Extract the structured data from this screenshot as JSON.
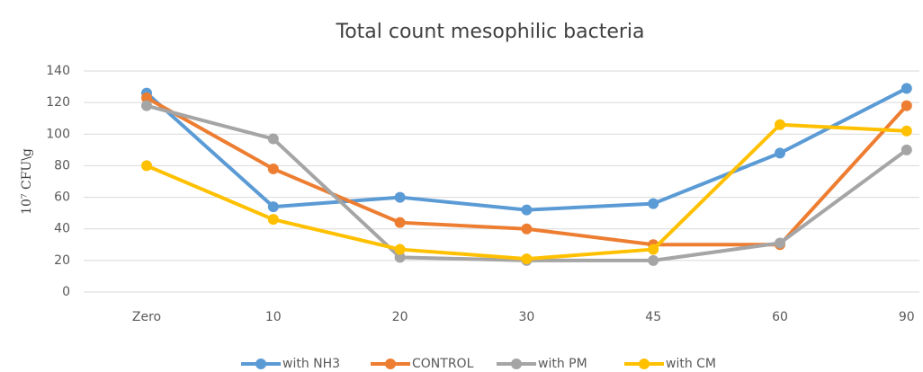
{
  "chart_data": {
    "type": "line",
    "title": "Total count mesophilic bacteria",
    "y_label": "10⁷ CFU\\g",
    "categories": [
      "Zero",
      "10",
      "20",
      "30",
      "45",
      "60",
      "90"
    ],
    "series": [
      {
        "name": "with NH3",
        "color": "#5b9bd5",
        "values": [
          126,
          54,
          60,
          52,
          56,
          88,
          129
        ]
      },
      {
        "name": "CONTROL",
        "color": "#ed7d31",
        "values": [
          123,
          78,
          44,
          40,
          30,
          30,
          118
        ]
      },
      {
        "name": "with PM",
        "color": "#a5a5a5",
        "values": [
          118,
          97,
          22,
          20,
          20,
          31,
          90
        ]
      },
      {
        "name": "with CM",
        "color": "#ffc000",
        "values": [
          80,
          46,
          27,
          21,
          27,
          106,
          102
        ]
      }
    ],
    "ylim": [
      0,
      140
    ],
    "yticks": [
      0,
      20,
      40,
      60,
      80,
      100,
      120,
      140
    ],
    "grid": true,
    "legend": "bottom"
  }
}
